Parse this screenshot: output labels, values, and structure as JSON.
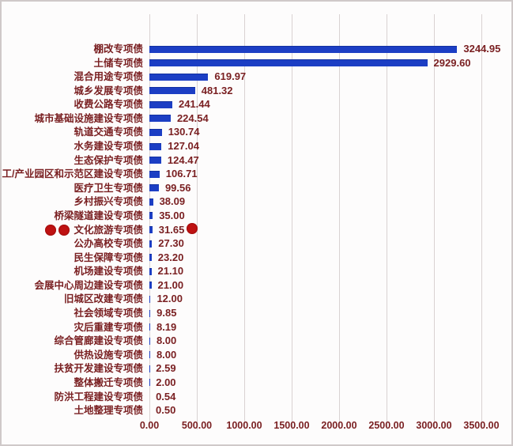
{
  "chart_data": {
    "type": "bar",
    "orientation": "horizontal",
    "title": "",
    "xlabel": "",
    "ylabel": "",
    "xlim": [
      0,
      3500
    ],
    "grid": "vertical",
    "legend": "none",
    "bar_color": "#1c3ec4",
    "text_color": "#7a2022",
    "gridline_color": "#d9d2d2",
    "categories": [
      "棚改专项债",
      "土储专项债",
      "混合用途专项债",
      "城乡发展专项债",
      "收费公路专项债",
      "城市基础设施建设专项债",
      "轨道交通专项债",
      "水务建设专项债",
      "生态保护专项债",
      "工/产业园区和示范区建设专项债",
      "医疗卫生专项债",
      "乡村振兴专项债",
      "桥梁隧道建设专项债",
      "文化旅游专项债",
      "公办高校专项债",
      "民生保障专项债",
      "机场建设专项债",
      "会展中心周边建设专项债",
      "旧城区改建专项债",
      "社会领域专项债",
      "灾后重建专项债",
      "综合管廊建设专项债",
      "供热设施专项债",
      "扶贫开发建设专项债",
      "整体搬迁专项债",
      "防洪工程建设专项债",
      "土地整理专项债"
    ],
    "values": [
      3244.95,
      2929.6,
      619.97,
      481.32,
      241.44,
      224.54,
      130.74,
      127.04,
      124.47,
      106.71,
      99.56,
      38.09,
      35.0,
      31.65,
      27.3,
      23.2,
      21.1,
      21.0,
      12.0,
      9.85,
      8.19,
      8.0,
      8.0,
      2.59,
      2.0,
      0.54,
      0.5
    ],
    "value_labels": [
      "3244.95",
      "2929.60",
      "619.97",
      "481.32",
      "241.44",
      "224.54",
      "130.74",
      "127.04",
      "124.47",
      "106.71",
      "99.56",
      "38.09",
      "35.00",
      "31.65",
      "27.30",
      "23.20",
      "21.10",
      "21.00",
      "12.00",
      "9.85",
      "8.19",
      "8.00",
      "8.00",
      "2.59",
      "2.00",
      "0.54",
      "0.50"
    ],
    "xticks": [
      "0.00",
      "500.00",
      "1000.00",
      "1500.00",
      "2000.00",
      "2500.00",
      "3000.00",
      "3500.00"
    ],
    "annotations": {
      "red_dots": {
        "category": "文化旅游专项债",
        "value": "31.65",
        "left_count": 2,
        "right_count": 1,
        "color": "#bf1212"
      }
    }
  }
}
